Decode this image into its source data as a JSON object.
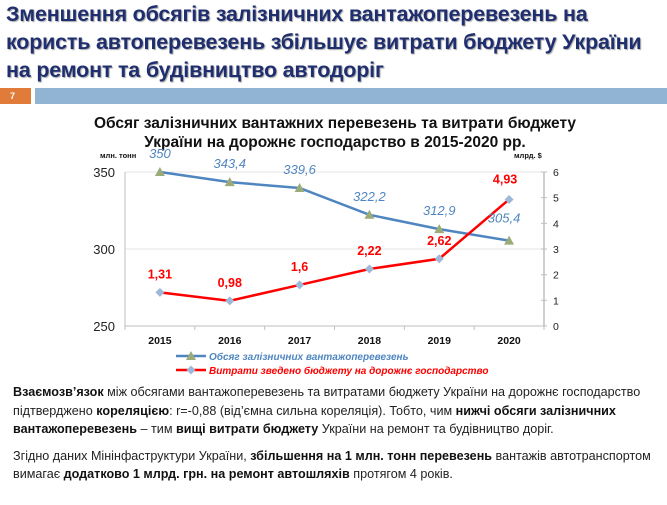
{
  "slide": {
    "title": "Зменшення обсягів залізничних вантажоперевезень на користь автоперевезень збільшує витрати бюджету України на ремонт та будівництво автодоріг",
    "slide_number": "7",
    "colors": {
      "title": "#1f2e6e",
      "slide_number_bg": "#e07b39",
      "header_bar": "#92b4d4"
    }
  },
  "chart_data": {
    "type": "line",
    "title": "Обсяг залізничних вантажних перевезень та витрати бюджету України на дорожнє господарство  в 2015-2020 рр.",
    "categories": [
      "2015",
      "2016",
      "2017",
      "2018",
      "2019",
      "2020"
    ],
    "y_left": {
      "label": "млн. тонн",
      "range": [
        250,
        350
      ],
      "ticks": [
        "250",
        "300",
        "350"
      ]
    },
    "y_right": {
      "label": "млрд. $",
      "range": [
        0,
        6
      ],
      "ticks": [
        "0",
        "1",
        "2",
        "3",
        "4",
        "5",
        "6"
      ]
    },
    "grid": "horizontal",
    "legend_position": "bottom",
    "series": [
      {
        "name": "Обсяг залізничних вантажоперевезень",
        "axis": "left",
        "color": "#4f86c0",
        "marker_color": "#9bab7a",
        "marker": "triangle",
        "values": [
          350,
          343.4,
          339.6,
          322.2,
          312.9,
          305.4
        ],
        "labels": [
          "350",
          "343,4",
          "339,6",
          "322,2",
          "312,9",
          "305,4"
        ]
      },
      {
        "name": "Витрати зведено бюджету на дорожнє господарство",
        "axis": "right",
        "color": "#ff0000",
        "marker_color": "#9db8d8",
        "marker": "diamond",
        "values": [
          1.31,
          0.98,
          1.6,
          2.22,
          2.62,
          4.93
        ],
        "labels": [
          "1,31",
          "0,98",
          "1,6",
          "2,22",
          "2,62",
          "4,93"
        ]
      }
    ]
  },
  "text": {
    "p1": [
      {
        "t": "Взаємозв’язок",
        "b": true
      },
      {
        "t": " між обсягами вантажоперевезень та витратами бюджету України на дорожнє господарство підтверджено ",
        "b": false
      },
      {
        "t": "кореляцією",
        "b": true
      },
      {
        "t": ": r=-0,88 (від’ємна сильна кореляція). Тобто, чим ",
        "b": false
      },
      {
        "t": "нижчі обсяги залізничних вантажоперевезень",
        "b": true
      },
      {
        "t": " – тим ",
        "b": false
      },
      {
        "t": "вищі витрати бюджету",
        "b": true
      },
      {
        "t": " України на ремонт та будівництво доріг.",
        "b": false
      }
    ],
    "p2": [
      {
        "t": "Згідно даних Мінінфаструктури України, ",
        "b": false
      },
      {
        "t": "збільшення на 1 млн. тонн перевезень",
        "b": true
      },
      {
        "t": " вантажів автотранспортом вимагає ",
        "b": false
      },
      {
        "t": "додатково 1 млрд. грн. на ремонт автошляхів",
        "b": true
      },
      {
        "t": " протягом 4 років.",
        "b": false
      }
    ]
  }
}
